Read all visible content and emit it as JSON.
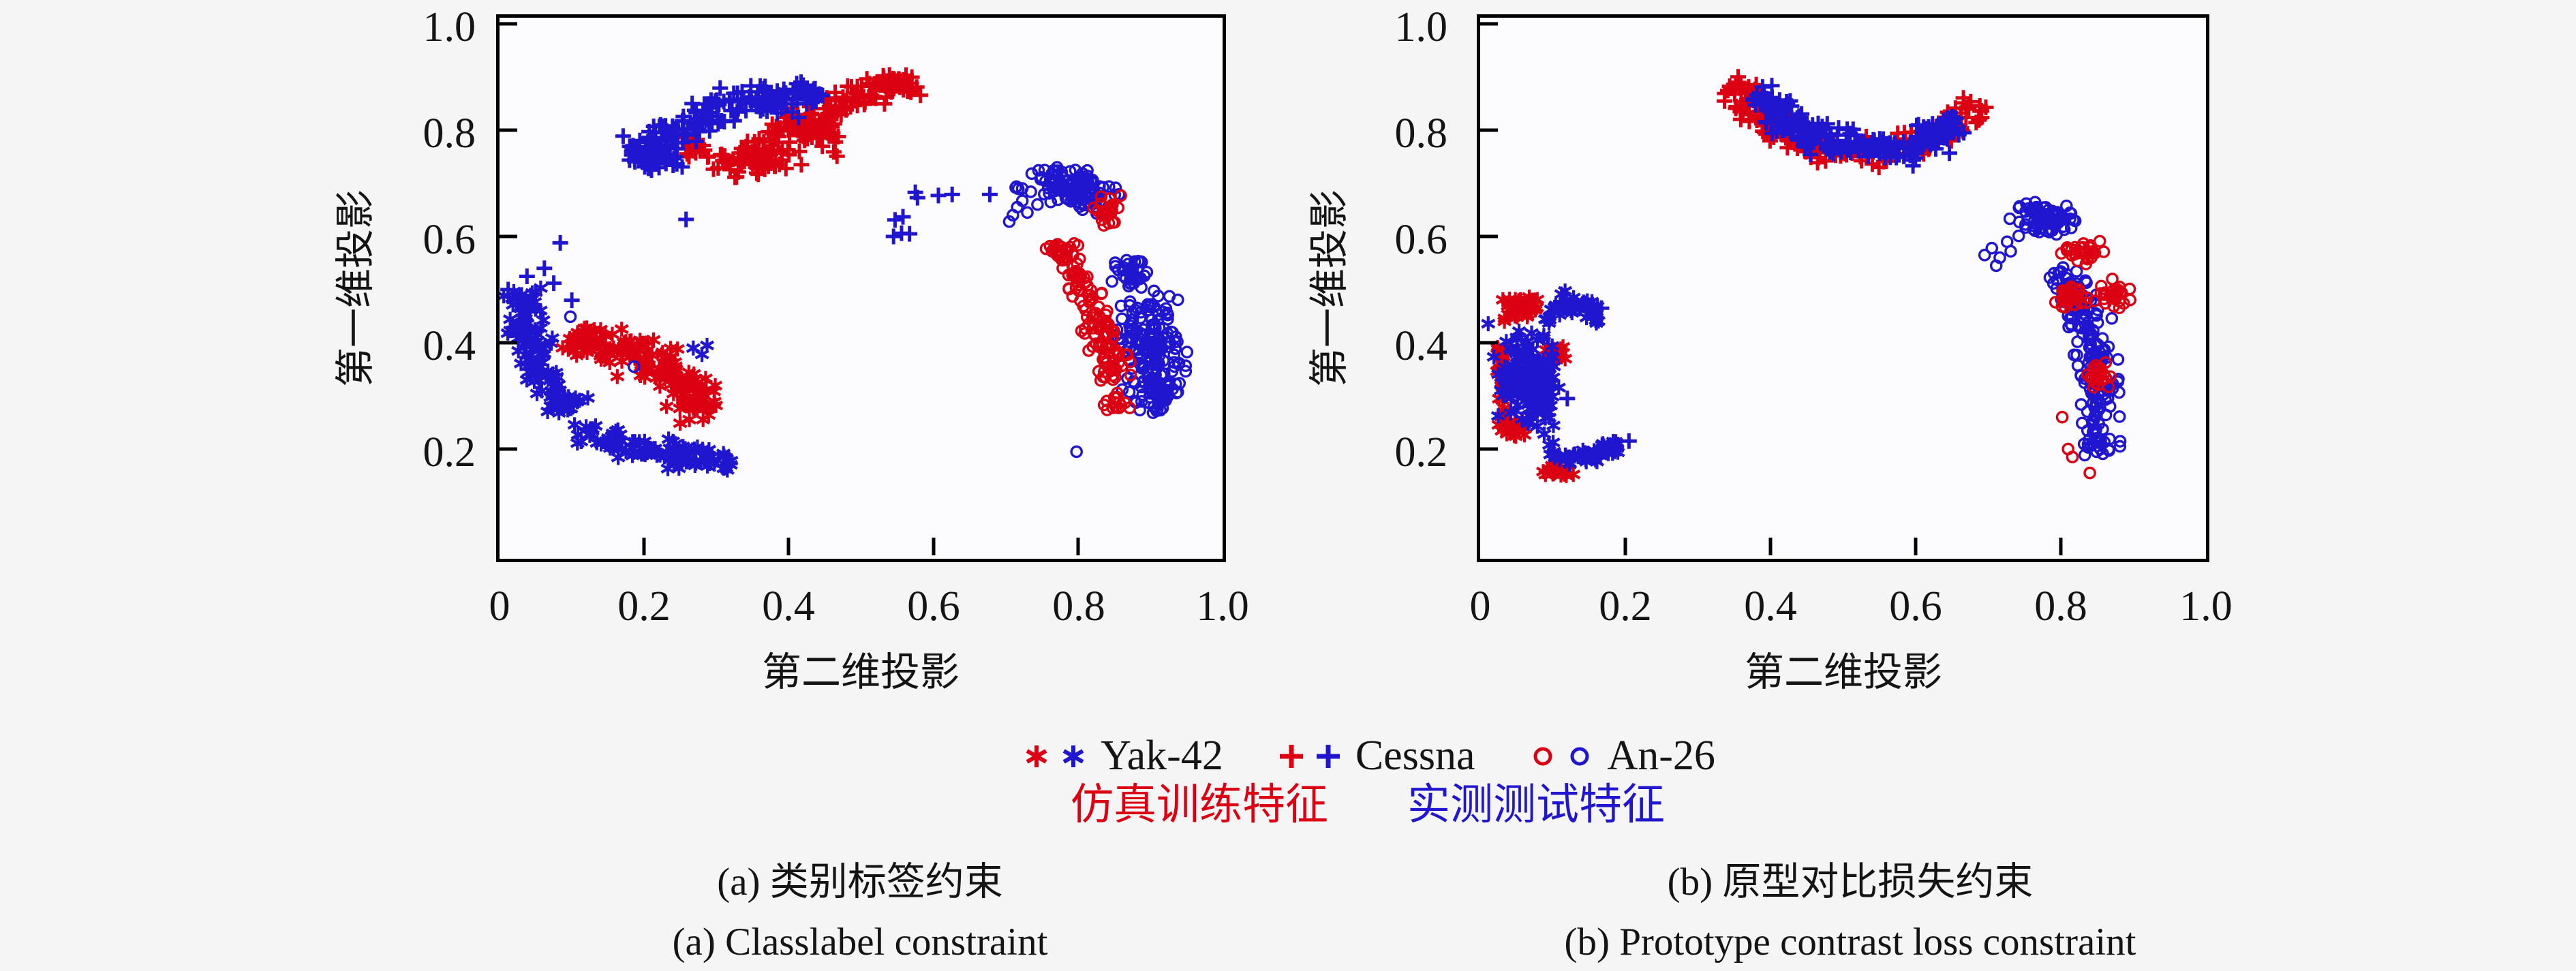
{
  "colors": {
    "sim_red": "#dc0013",
    "test_blue": "#2016cf",
    "axis": "#000000",
    "text": "#141414",
    "page_bg": "#f6f5f6",
    "plot_bg": "#fcfbfd"
  },
  "plots": [
    {
      "id": "a",
      "xlabel": "第二维投影",
      "ylabel": "第一维投影",
      "x_ticks": [
        "0",
        "0.2",
        "0.4",
        "0.6",
        "0.8",
        "1.0"
      ],
      "y_ticks": [
        "1.0",
        "0.8",
        "0.6",
        "0.4",
        "0.2"
      ],
      "caption_zh": "(a) 类别标签约束",
      "caption_en": "(a) Classlabel constraint"
    },
    {
      "id": "b",
      "xlabel": "第二维投影",
      "ylabel": "第一维投影",
      "x_ticks": [
        "0",
        "0.2",
        "0.4",
        "0.6",
        "0.8",
        "1.0"
      ],
      "y_ticks": [
        "1.0",
        "0.8",
        "0.6",
        "0.4",
        "0.2"
      ],
      "caption_zh": "(b) 原型对比损失约束",
      "caption_en": "(b) Prototype contrast loss constraint"
    }
  ],
  "legend": {
    "classes": [
      {
        "label": "Yak-42",
        "marker": "star"
      },
      {
        "label": "Cessna",
        "marker": "plus"
      },
      {
        "label": "An-26",
        "marker": "circle"
      }
    ],
    "sim_label": "仿真训练特征",
    "test_label": "实测测试特征"
  },
  "chart_data": [
    {
      "id": "a",
      "type": "scatter",
      "title": "(a) 类别标签约束 / Classlabel constraint",
      "xlabel": "第二维投影",
      "ylabel": "第一维投影",
      "xlim": [
        0,
        1.0
      ],
      "ylim": [
        0,
        1.02
      ],
      "x_tick_values": [
        0,
        0.2,
        0.4,
        0.6,
        0.8,
        1.0
      ],
      "y_tick_values": [
        0.2,
        0.4,
        0.6,
        0.8,
        1.0
      ],
      "grid": false,
      "classes": [
        {
          "name": "Yak-42",
          "marker": "star"
        },
        {
          "name": "Cessna",
          "marker": "plus"
        },
        {
          "name": "An-26",
          "marker": "circle"
        }
      ],
      "domains": [
        {
          "key": "sim",
          "name": "仿真训练特征",
          "color": "#dc0013"
        },
        {
          "key": "test",
          "name": "实测测试特征",
          "color": "#2016cf"
        }
      ],
      "clusters": [
        {
          "class": "Cessna",
          "domain": "sim",
          "kind": "arc",
          "from": [
            0.3,
            0.72
          ],
          "to": [
            0.565,
            0.9
          ],
          "bend": 0.01,
          "width": 0.055,
          "n": 150,
          "seed": 11
        },
        {
          "class": "Cessna",
          "domain": "sim",
          "kind": "blob",
          "center": [
            0.36,
            0.745
          ],
          "rx": 0.05,
          "ry": 0.028,
          "rot": 0,
          "n": 45,
          "seed": 12
        },
        {
          "class": "Cessna",
          "domain": "sim",
          "kind": "blob",
          "center": [
            0.43,
            0.8
          ],
          "rx": 0.045,
          "ry": 0.04,
          "rot": 0,
          "n": 45,
          "seed": 13
        },
        {
          "class": "Cessna",
          "domain": "sim",
          "kind": "blob",
          "center": [
            0.27,
            0.77
          ],
          "rx": 0.02,
          "ry": 0.02,
          "rot": 0,
          "n": 15,
          "seed": 14
        },
        {
          "class": "Cessna",
          "domain": "sim",
          "kind": "blob",
          "center": [
            0.55,
            0.885
          ],
          "rx": 0.022,
          "ry": 0.022,
          "rot": 0,
          "n": 22,
          "seed": 15
        },
        {
          "class": "Cessna",
          "domain": "test",
          "kind": "arc",
          "from": [
            0.18,
            0.755
          ],
          "to": [
            0.45,
            0.87
          ],
          "bend": 0.025,
          "width": 0.055,
          "n": 170,
          "seed": 16
        },
        {
          "class": "Cessna",
          "domain": "test",
          "kind": "blob",
          "center": [
            0.215,
            0.755
          ],
          "rx": 0.04,
          "ry": 0.035,
          "rot": 0,
          "n": 60,
          "seed": 17
        },
        {
          "class": "Cessna",
          "domain": "test",
          "kind": "points",
          "pts": [
            [
              0.084,
              0.588
            ],
            [
              0.258,
              0.632
            ],
            [
              0.547,
              0.631
            ],
            [
              0.556,
              0.606
            ],
            [
              0.558,
              0.637
            ],
            [
              0.545,
              0.6
            ],
            [
              0.567,
              0.605
            ],
            [
              0.575,
              0.683
            ],
            [
              0.578,
              0.673
            ],
            [
              0.607,
              0.677
            ],
            [
              0.626,
              0.679
            ],
            [
              0.678,
              0.679
            ]
          ]
        },
        {
          "class": "Yak-42",
          "domain": "test",
          "kind": "arc",
          "from": [
            0.035,
            0.5
          ],
          "to": [
            0.1,
            0.27
          ],
          "bend": -0.025,
          "width": 0.05,
          "n": 130,
          "seed": 21
        },
        {
          "class": "Yak-42",
          "domain": "test",
          "kind": "arc",
          "from": [
            0.1,
            0.235
          ],
          "to": [
            0.325,
            0.175
          ],
          "bend": -0.01,
          "width": 0.045,
          "n": 110,
          "seed": 22
        },
        {
          "class": "Yak-42",
          "domain": "sim",
          "kind": "arc",
          "from": [
            0.095,
            0.41
          ],
          "to": [
            0.285,
            0.26
          ],
          "bend": 0.035,
          "width": 0.065,
          "n": 180,
          "seed": 23
        },
        {
          "class": "Yak-42",
          "domain": "test",
          "kind": "points",
          "pts": [
            [
              0.268,
              0.39
            ],
            [
              0.28,
              0.378
            ],
            [
              0.287,
              0.395
            ]
          ]
        },
        {
          "class": "Cessna",
          "domain": "test",
          "kind": "points",
          "pts": [
            [
              0.012,
              0.5
            ],
            [
              0.038,
              0.525
            ],
            [
              0.062,
              0.54
            ],
            [
              0.075,
              0.512
            ],
            [
              0.1,
              0.48
            ],
            [
              0.048,
              0.47
            ]
          ]
        },
        {
          "class": "An-26",
          "domain": "test",
          "kind": "points",
          "pts": [
            [
              0.098,
              0.449
            ],
            [
              0.186,
              0.355
            ]
          ]
        },
        {
          "class": "An-26",
          "domain": "test",
          "kind": "blob",
          "center": [
            0.79,
            0.69
          ],
          "rx": 0.06,
          "ry": 0.035,
          "rot": -12,
          "n": 110,
          "seed": 31
        },
        {
          "class": "An-26",
          "domain": "test",
          "kind": "points",
          "pts": [
            [
              0.71,
              0.64
            ],
            [
              0.716,
              0.655
            ],
            [
              0.723,
              0.667
            ],
            [
              0.73,
              0.645
            ],
            [
              0.744,
              0.66
            ],
            [
              0.705,
              0.628
            ]
          ]
        },
        {
          "class": "An-26",
          "domain": "sim",
          "kind": "blob",
          "center": [
            0.845,
            0.65
          ],
          "rx": 0.022,
          "ry": 0.03,
          "rot": 0,
          "n": 25,
          "seed": 32
        },
        {
          "class": "An-26",
          "domain": "sim",
          "kind": "arc",
          "from": [
            0.77,
            0.585
          ],
          "to": [
            0.855,
            0.33
          ],
          "bend": 0.01,
          "width": 0.042,
          "n": 140,
          "seed": 33
        },
        {
          "class": "An-26",
          "domain": "test",
          "kind": "blob",
          "center": [
            0.9,
            0.4
          ],
          "rx": 0.045,
          "ry": 0.095,
          "rot": 8,
          "n": 160,
          "seed": 34
        },
        {
          "class": "An-26",
          "domain": "test",
          "kind": "blob",
          "center": [
            0.875,
            0.53
          ],
          "rx": 0.025,
          "ry": 0.035,
          "rot": 0,
          "n": 40,
          "seed": 35
        },
        {
          "class": "An-26",
          "domain": "test",
          "kind": "blob",
          "center": [
            0.91,
            0.3
          ],
          "rx": 0.03,
          "ry": 0.03,
          "rot": 0,
          "n": 45,
          "seed": 36
        },
        {
          "class": "An-26",
          "domain": "sim",
          "kind": "blob",
          "center": [
            0.85,
            0.285
          ],
          "rx": 0.02,
          "ry": 0.018,
          "rot": 0,
          "n": 15,
          "seed": 37
        },
        {
          "class": "An-26",
          "domain": "test",
          "kind": "points",
          "pts": [
            [
              0.798,
              0.195
            ]
          ]
        }
      ]
    },
    {
      "id": "b",
      "type": "scatter",
      "title": "(b) 原型对比损失约束 / Prototype contrast loss constraint",
      "xlabel": "第二维投影",
      "ylabel": "第一维投影",
      "xlim": [
        0,
        1.0
      ],
      "ylim": [
        0,
        1.02
      ],
      "x_tick_values": [
        0,
        0.2,
        0.4,
        0.6,
        0.8,
        1.0
      ],
      "y_tick_values": [
        0.2,
        0.4,
        0.6,
        0.8,
        1.0
      ],
      "grid": false,
      "classes": [
        {
          "name": "Yak-42",
          "marker": "star"
        },
        {
          "name": "Cessna",
          "marker": "plus"
        },
        {
          "name": "An-26",
          "marker": "circle"
        }
      ],
      "domains": [
        {
          "key": "sim",
          "name": "仿真训练特征",
          "color": "#dc0013"
        },
        {
          "key": "test",
          "name": "实测测试特征",
          "color": "#2016cf"
        }
      ],
      "clusters": [
        {
          "class": "Cessna",
          "domain": "sim",
          "kind": "arc",
          "from": [
            0.345,
            0.89
          ],
          "to": [
            0.49,
            0.75
          ],
          "bend": -0.02,
          "width": 0.05,
          "n": 110,
          "seed": 41
        },
        {
          "class": "Cessna",
          "domain": "sim",
          "kind": "arc",
          "from": [
            0.49,
            0.755
          ],
          "to": [
            0.695,
            0.85
          ],
          "bend": -0.025,
          "width": 0.05,
          "n": 100,
          "seed": 42
        },
        {
          "class": "Cessna",
          "domain": "test",
          "kind": "arc",
          "from": [
            0.385,
            0.875
          ],
          "to": [
            0.515,
            0.765
          ],
          "bend": -0.02,
          "width": 0.05,
          "n": 115,
          "seed": 43
        },
        {
          "class": "Cessna",
          "domain": "test",
          "kind": "arc",
          "from": [
            0.515,
            0.77
          ],
          "to": [
            0.66,
            0.82
          ],
          "bend": -0.03,
          "width": 0.05,
          "n": 90,
          "seed": 44
        },
        {
          "class": "Cessna",
          "domain": "test",
          "kind": "blob",
          "center": [
            0.625,
            0.79
          ],
          "rx": 0.03,
          "ry": 0.03,
          "rot": 0,
          "n": 35,
          "seed": 45
        },
        {
          "class": "Yak-42",
          "domain": "sim",
          "kind": "blob",
          "center": [
            0.054,
            0.468
          ],
          "rx": 0.028,
          "ry": 0.024,
          "rot": 0,
          "n": 45,
          "seed": 51
        },
        {
          "class": "Yak-42",
          "domain": "test",
          "kind": "arc",
          "from": [
            0.09,
            0.455
          ],
          "to": [
            0.165,
            0.45
          ],
          "bend": 0.02,
          "width": 0.04,
          "n": 50,
          "seed": 52
        },
        {
          "class": "Yak-42",
          "domain": "test",
          "kind": "blob",
          "center": [
            0.068,
            0.33
          ],
          "rx": 0.042,
          "ry": 0.09,
          "rot": 5,
          "n": 190,
          "seed": 53
        },
        {
          "class": "Yak-42",
          "domain": "sim",
          "kind": "arc",
          "from": [
            0.028,
            0.4
          ],
          "to": [
            0.032,
            0.23
          ],
          "bend": 0,
          "width": 0.015,
          "n": 30,
          "seed": 54
        },
        {
          "class": "Yak-42",
          "domain": "test",
          "kind": "arc",
          "from": [
            0.095,
            0.195
          ],
          "to": [
            0.19,
            0.21
          ],
          "bend": -0.02,
          "width": 0.032,
          "n": 55,
          "seed": 55
        },
        {
          "class": "Yak-42",
          "domain": "sim",
          "kind": "blob",
          "center": [
            0.108,
            0.158
          ],
          "rx": 0.02,
          "ry": 0.014,
          "rot": 0,
          "n": 28,
          "seed": 56
        },
        {
          "class": "Yak-42",
          "domain": "sim",
          "kind": "blob",
          "center": [
            0.05,
            0.24
          ],
          "rx": 0.015,
          "ry": 0.03,
          "rot": 0,
          "n": 22,
          "seed": 57
        },
        {
          "class": "Yak-42",
          "domain": "sim",
          "kind": "blob",
          "center": [
            0.11,
            0.38
          ],
          "rx": 0.02,
          "ry": 0.015,
          "rot": 0,
          "n": 18,
          "seed": 58
        },
        {
          "class": "Cessna",
          "domain": "test",
          "kind": "points",
          "pts": [
            [
              0.167,
              0.465
            ],
            [
              0.17,
              0.205
            ],
            [
              0.205,
              0.215
            ],
            [
              0.12,
              0.295
            ]
          ]
        },
        {
          "class": "An-26",
          "domain": "test",
          "kind": "blob",
          "center": [
            0.777,
            0.632
          ],
          "rx": 0.042,
          "ry": 0.028,
          "rot": -10,
          "n": 75,
          "seed": 61
        },
        {
          "class": "An-26",
          "domain": "test",
          "kind": "points",
          "pts": [
            [
              0.695,
              0.565
            ],
            [
              0.705,
              0.578
            ],
            [
              0.716,
              0.56
            ],
            [
              0.726,
              0.59
            ],
            [
              0.711,
              0.545
            ],
            [
              0.731,
              0.572
            ],
            [
              0.742,
              0.601
            ]
          ]
        },
        {
          "class": "An-26",
          "domain": "sim",
          "kind": "blob",
          "center": [
            0.83,
            0.57
          ],
          "rx": 0.028,
          "ry": 0.02,
          "rot": 0,
          "n": 30,
          "seed": 62
        },
        {
          "class": "An-26",
          "domain": "test",
          "kind": "arc",
          "from": [
            0.8,
            0.545
          ],
          "to": [
            0.855,
            0.19
          ],
          "bend": 0.02,
          "width": 0.05,
          "n": 185,
          "seed": 63
        },
        {
          "class": "An-26",
          "domain": "sim",
          "kind": "blob",
          "center": [
            0.815,
            0.49
          ],
          "rx": 0.02,
          "ry": 0.025,
          "rot": 0,
          "n": 30,
          "seed": 64
        },
        {
          "class": "An-26",
          "domain": "sim",
          "kind": "blob",
          "center": [
            0.875,
            0.49
          ],
          "rx": 0.025,
          "ry": 0.025,
          "rot": 0,
          "n": 30,
          "seed": 65
        },
        {
          "class": "An-26",
          "domain": "sim",
          "kind": "blob",
          "center": [
            0.855,
            0.34
          ],
          "rx": 0.018,
          "ry": 0.022,
          "rot": 0,
          "n": 25,
          "seed": 66
        },
        {
          "class": "An-26",
          "domain": "sim",
          "kind": "points",
          "pts": [
            [
              0.81,
              0.2
            ],
            [
              0.816,
              0.185
            ],
            [
              0.802,
              0.26
            ],
            [
              0.84,
              0.155
            ]
          ]
        }
      ]
    }
  ]
}
